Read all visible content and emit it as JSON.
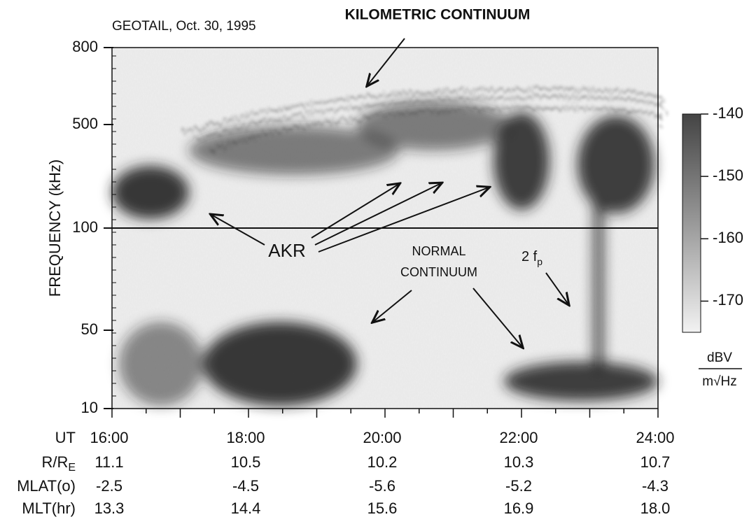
{
  "chart_data": {
    "type": "spectrogram",
    "title": "GEOTAIL, Oct. 30, 1995",
    "ylabel": "FREQUENCY (kHz)",
    "yticks": [
      800,
      500,
      100,
      50,
      10
    ],
    "categories": [
      "16:00",
      "18:00",
      "20:00",
      "22:00",
      "24:00"
    ],
    "annotations": {
      "kilometric": "KILOMETRIC CONTINUUM",
      "akr": "AKR",
      "normal": [
        "NORMAL",
        "CONTINUUM"
      ],
      "harmonic": {
        "text": "2 f",
        "sub": "p"
      }
    },
    "colorbar": {
      "clim": [
        -175,
        -140
      ],
      "ticks": [
        -140,
        -150,
        -160,
        -170
      ],
      "label_top": "dBV",
      "label_bottom": "m√Hz"
    },
    "ephemeris": [
      {
        "label": "UT",
        "values": [
          "16:00",
          "18:00",
          "20:00",
          "22:00",
          "24:00"
        ]
      },
      {
        "label": "R/R",
        "sub": "E",
        "values": [
          "11.1",
          "10.5",
          "10.2",
          "10.3",
          "10.7"
        ]
      },
      {
        "label": "MLAT(o)",
        "values": [
          "-2.5",
          "-4.5",
          "-5.6",
          "-5.2",
          "-4.3"
        ]
      },
      {
        "label": "MLT(hr)",
        "values": [
          "13.3",
          "14.4",
          "15.6",
          "16.9",
          "18.0"
        ]
      }
    ]
  }
}
